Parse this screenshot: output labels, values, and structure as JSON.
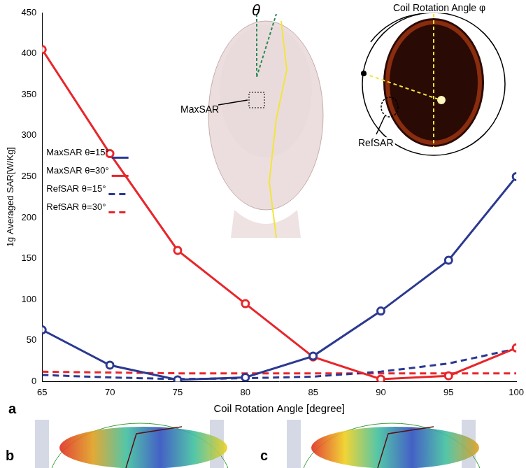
{
  "chart_data": {
    "type": "line",
    "x_label": "Coil Rotation Angle [degree]",
    "y_label": "1g Averaged SAR[W/Kg]",
    "x": [
      65,
      70,
      75,
      80,
      85,
      90,
      95,
      100
    ],
    "series": [
      {
        "name": "MaxSAR θ=15°",
        "color": "#2b3990",
        "line_style": "solid",
        "marker": "circle",
        "values": [
          63,
          20,
          2,
          5,
          31,
          86,
          148,
          250
        ]
      },
      {
        "name": "MaxSAR θ=30°",
        "color": "#e8262b",
        "line_style": "solid",
        "marker": "circle",
        "values": [
          405,
          278,
          160,
          95,
          30,
          3,
          7,
          41
        ]
      },
      {
        "name": "RefSAR θ=15°",
        "color": "#2b3990",
        "line_style": "dashed",
        "marker": "none",
        "values": [
          8,
          5,
          3,
          4,
          6,
          12,
          22,
          40
        ]
      },
      {
        "name": "RefSAR θ=30°",
        "color": "#e8262b",
        "line_style": "dashed",
        "marker": "none",
        "values": [
          12,
          11,
          10,
          10,
          10,
          10,
          10,
          10
        ]
      }
    ],
    "xlim": [
      65,
      100
    ],
    "xticks": [
      65,
      70,
      75,
      80,
      85,
      90,
      95,
      100
    ],
    "ylim": [
      0,
      450
    ],
    "yticks": [
      0,
      50,
      100,
      150,
      200,
      250,
      300,
      350,
      400,
      450
    ],
    "grid": false,
    "legend": "left",
    "annotations": [
      "θ",
      "Coil Rotation Angle φ",
      "MaxSAR",
      "RefSAR"
    ],
    "panel_labels": [
      "a",
      "b",
      "c"
    ]
  }
}
